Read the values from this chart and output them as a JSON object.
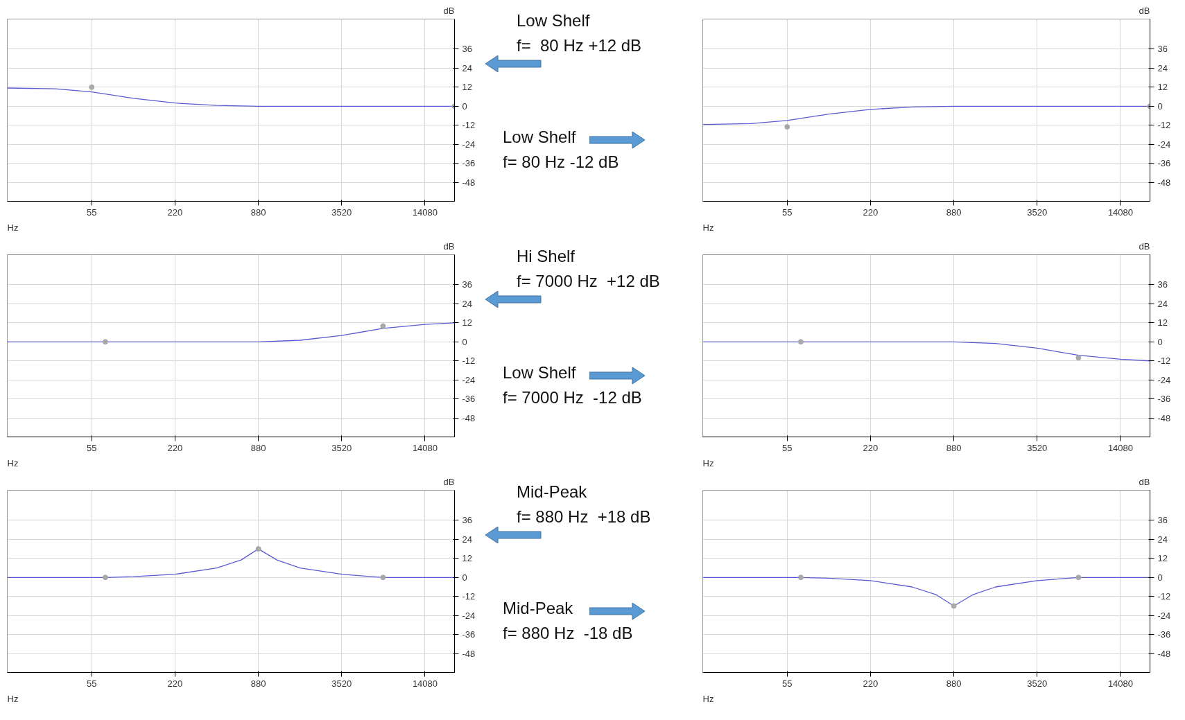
{
  "chart_data": [
    {
      "type": "line",
      "log": "x",
      "grid": true,
      "xlim": [
        13.5,
        23000
      ],
      "ylim": [
        -60,
        55
      ],
      "xlabel": "Hz",
      "ylabel": "dB",
      "xticks": [
        55,
        220,
        880,
        3520,
        14080
      ],
      "yticks": [
        36,
        24,
        12,
        0,
        -12,
        -24,
        -36,
        -48
      ],
      "annotations": [
        "Low Shelf",
        "f=  80 Hz +12 dB"
      ],
      "series": [
        {
          "color": "#5a5ad2",
          "x": [
            13.5,
            30,
            55,
            110,
            220,
            440,
            880,
            23000
          ],
          "values": [
            11.5,
            11,
            9,
            5,
            2,
            0.5,
            0,
            0
          ]
        },
        {
          "type": "scatter",
          "color": "#a8a8a8",
          "x": [
            55,
            23000
          ],
          "values": [
            12,
            0
          ]
        }
      ]
    },
    {
      "type": "line",
      "log": "x",
      "grid": true,
      "xlim": [
        13.5,
        23000
      ],
      "ylim": [
        -60,
        55
      ],
      "xlabel": "Hz",
      "ylabel": "dB",
      "xticks": [
        55,
        220,
        880,
        3520,
        14080
      ],
      "yticks": [
        36,
        24,
        12,
        0,
        -12,
        -24,
        -36,
        -48
      ],
      "annotations": [
        "Low Shelf",
        "f= 80 Hz -12 dB"
      ],
      "series": [
        {
          "color": "#5a5ad2",
          "x": [
            13.5,
            30,
            55,
            110,
            220,
            440,
            880,
            23000
          ],
          "values": [
            -11.5,
            -11,
            -9,
            -5,
            -2,
            -0.5,
            0,
            0
          ]
        },
        {
          "type": "scatter",
          "color": "#a8a8a8",
          "x": [
            55,
            23000
          ],
          "values": [
            -13,
            0
          ]
        }
      ]
    },
    {
      "type": "line",
      "log": "x",
      "grid": true,
      "xlim": [
        13.5,
        23000
      ],
      "ylim": [
        -60,
        55
      ],
      "xlabel": "Hz",
      "ylabel": "dB",
      "xticks": [
        55,
        220,
        880,
        3520,
        14080
      ],
      "yticks": [
        36,
        24,
        12,
        0,
        -12,
        -24,
        -36,
        -48
      ],
      "annotations": [
        "Hi Shelf",
        "f= 7000 Hz  +12 dB"
      ],
      "series": [
        {
          "color": "#5a5ad2",
          "x": [
            13.5,
            880,
            1760,
            3520,
            7000,
            14080,
            23000
          ],
          "values": [
            0,
            0,
            1,
            4,
            8.5,
            11,
            12
          ]
        },
        {
          "type": "scatter",
          "color": "#a8a8a8",
          "x": [
            69,
            7000
          ],
          "values": [
            0,
            10
          ]
        }
      ]
    },
    {
      "type": "line",
      "log": "x",
      "grid": true,
      "xlim": [
        13.5,
        23000
      ],
      "ylim": [
        -60,
        55
      ],
      "xlabel": "Hz",
      "ylabel": "dB",
      "xticks": [
        55,
        220,
        880,
        3520,
        14080
      ],
      "yticks": [
        36,
        24,
        12,
        0,
        -12,
        -24,
        -36,
        -48
      ],
      "annotations": [
        "Low Shelf",
        "f= 7000 Hz  -12 dB"
      ],
      "series": [
        {
          "color": "#5a5ad2",
          "x": [
            13.5,
            880,
            1760,
            3520,
            7000,
            14080,
            23000
          ],
          "values": [
            0,
            0,
            -1,
            -4,
            -8.5,
            -11,
            -12
          ]
        },
        {
          "type": "scatter",
          "color": "#a8a8a8",
          "x": [
            69,
            7000
          ],
          "values": [
            0,
            -10
          ]
        }
      ]
    },
    {
      "type": "line",
      "log": "x",
      "grid": true,
      "xlim": [
        13.5,
        23000
      ],
      "ylim": [
        -60,
        55
      ],
      "xlabel": "Hz",
      "ylabel": "dB",
      "xticks": [
        55,
        220,
        880,
        3520,
        14080
      ],
      "yticks": [
        36,
        24,
        12,
        0,
        -12,
        -24,
        -36,
        -48
      ],
      "annotations": [
        "Mid-Peak",
        "f= 880 Hz  +18 dB"
      ],
      "series": [
        {
          "color": "#5a5ad2",
          "x": [
            13.5,
            69,
            110,
            220,
            440,
            660,
            880,
            1200,
            1760,
            3520,
            7000,
            23000
          ],
          "values": [
            0,
            0,
            0.5,
            2,
            6,
            11,
            18,
            11,
            6,
            2,
            0,
            0
          ]
        },
        {
          "type": "scatter",
          "color": "#a8a8a8",
          "x": [
            69,
            880,
            7000
          ],
          "values": [
            0,
            18,
            0
          ]
        }
      ]
    },
    {
      "type": "line",
      "log": "x",
      "grid": true,
      "xlim": [
        13.5,
        23000
      ],
      "ylim": [
        -60,
        55
      ],
      "xlabel": "Hz",
      "ylabel": "dB",
      "xticks": [
        55,
        220,
        880,
        3520,
        14080
      ],
      "yticks": [
        36,
        24,
        12,
        0,
        -12,
        -24,
        -36,
        -48
      ],
      "annotations": [
        "Mid-Peak",
        "f= 880 Hz  -18 dB"
      ],
      "series": [
        {
          "color": "#5a5ad2",
          "x": [
            13.5,
            69,
            110,
            220,
            440,
            660,
            880,
            1200,
            1760,
            3520,
            7000,
            23000
          ],
          "values": [
            0,
            0,
            -0.5,
            -2,
            -6,
            -11,
            -18,
            -11,
            -6,
            -2,
            0,
            0
          ]
        },
        {
          "type": "scatter",
          "color": "#a8a8a8",
          "x": [
            69,
            880,
            7000
          ],
          "values": [
            0,
            -18,
            0
          ]
        }
      ]
    }
  ]
}
